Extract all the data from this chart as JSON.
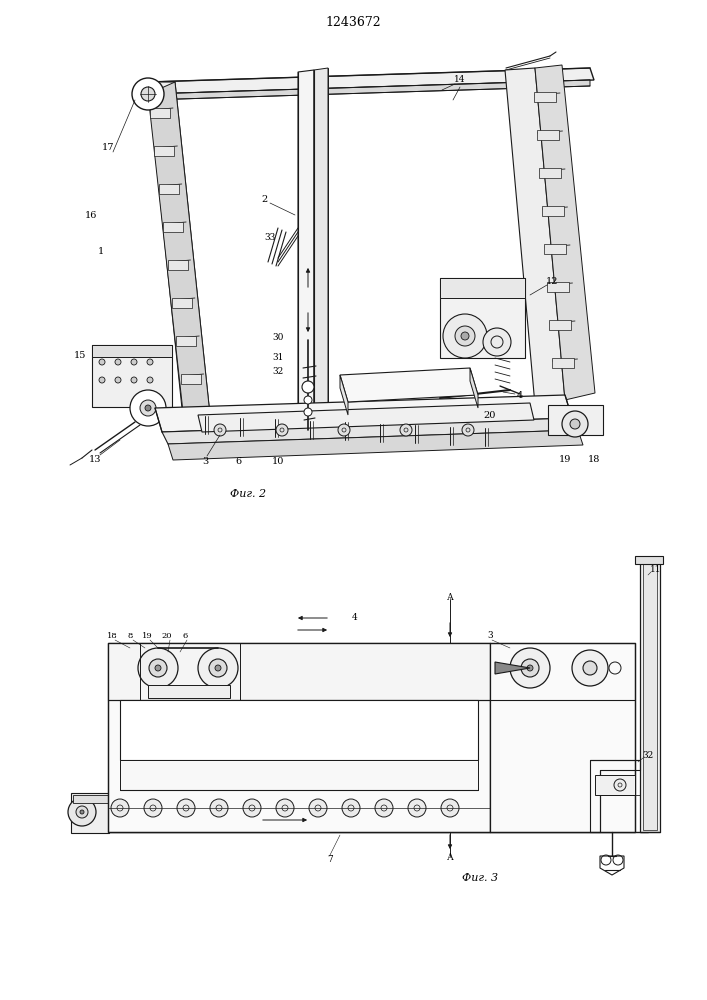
{
  "title": "1243672",
  "fig2_label": "Фиг. 2",
  "fig3_label": "Фиг. 3",
  "bg_color": "#ffffff",
  "lc": "#1a1a1a",
  "fig_width": 7.07,
  "fig_height": 10.0,
  "dpi": 100
}
